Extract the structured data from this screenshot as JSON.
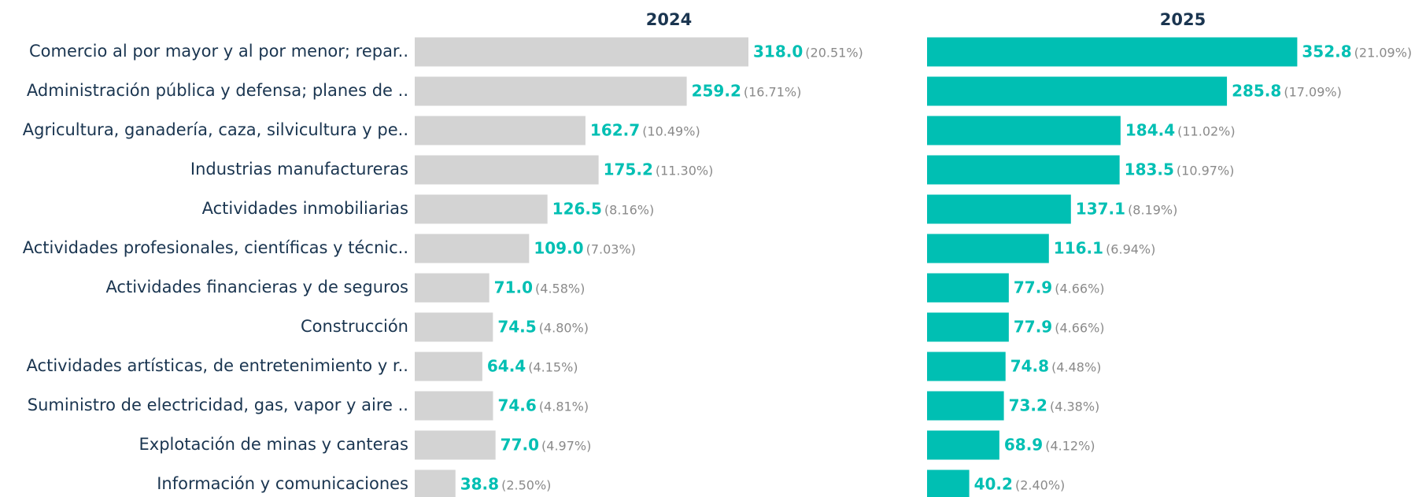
{
  "chart_data": [
    {
      "type": "bar",
      "orientation": "horizontal",
      "title": "2024",
      "color": "#d3d3d3",
      "label_color": "#00bfb3",
      "categories": [
        "Comercio al por mayor y al por menor; repar..",
        "Administración pública y defensa; planes de ..",
        "Agricultura, ganadería, caza, silvicultura y pe..",
        "Industrias manufactureras",
        "Actividades inmobiliarias",
        "Actividades profesionales, científicas y técnic..",
        "Actividades financieras y de seguros",
        "Construcción",
        "Actividades artísticas, de entretenimiento y r..",
        "Suministro de electricidad, gas, vapor y aire ..",
        "Explotación de minas y canteras",
        "Información y comunicaciones"
      ],
      "values": [
        318.0,
        259.2,
        162.7,
        175.2,
        126.5,
        109.0,
        71.0,
        74.5,
        64.4,
        74.6,
        77.0,
        38.8
      ],
      "value_labels": [
        "318.0",
        "259.2",
        "162.7",
        "175.2",
        "126.5",
        "109.0",
        "71.0",
        "74.5",
        "64.4",
        "74.6",
        "77.0",
        "38.8"
      ],
      "share_labels": [
        "(20.51%)",
        "(16.71%)",
        "(10.49%)",
        "(11.30%)",
        "(8.16%)",
        "(7.03%)",
        "(4.58%)",
        "(4.80%)",
        "(4.15%)",
        "(4.81%)",
        "(4.97%)",
        "(2.50%)"
      ],
      "xlim": [
        0,
        450
      ]
    },
    {
      "type": "bar",
      "orientation": "horizontal",
      "title": "2025",
      "color": "#00bfb3",
      "label_color": "#00bfb3",
      "values": [
        352.8,
        285.8,
        184.4,
        183.5,
        137.1,
        116.1,
        77.9,
        77.9,
        74.8,
        73.2,
        68.9,
        40.2
      ],
      "value_labels": [
        "352.8",
        "285.8",
        "184.4",
        "183.5",
        "137.1",
        "116.1",
        "77.9",
        "77.9",
        "74.8",
        "73.2",
        "68.9",
        "40.2"
      ],
      "share_labels": [
        "(21.09%)",
        "(17.09%)",
        "(11.02%)",
        "(10.97%)",
        "(8.19%)",
        "(6.94%)",
        "(4.66%)",
        "(4.66%)",
        "(4.48%)",
        "(4.38%)",
        "(4.12%)",
        "(2.40%)"
      ],
      "xlim": [
        0,
        450
      ]
    }
  ]
}
